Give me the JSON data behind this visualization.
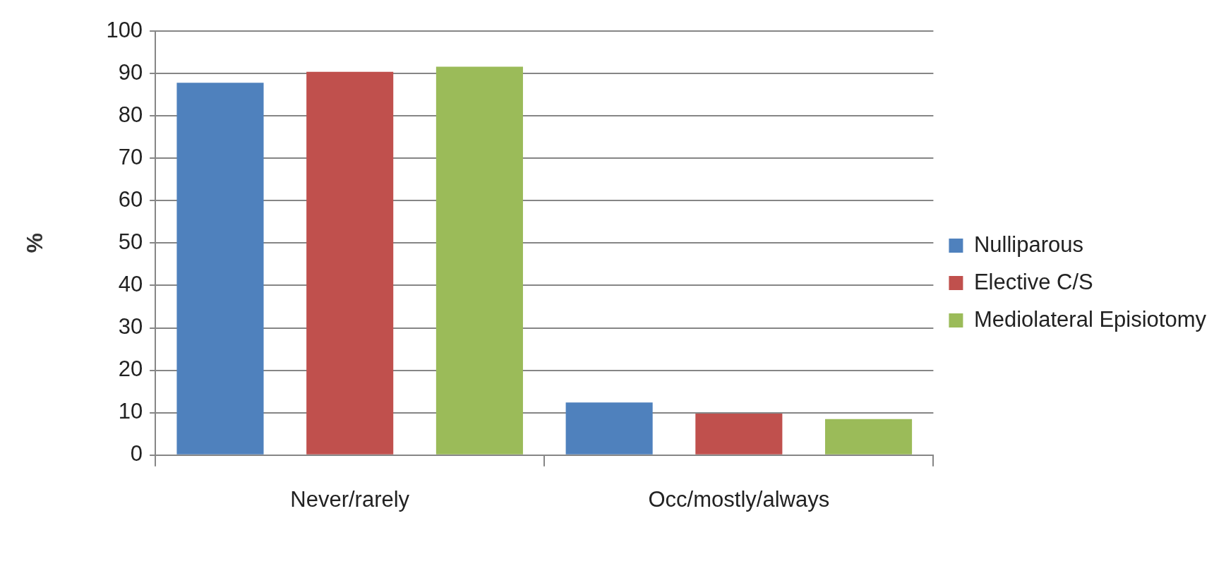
{
  "chart_data": {
    "type": "bar",
    "ylabel": "%",
    "categories": [
      "Never/rarely",
      "Occ/mostly/always"
    ],
    "series": [
      {
        "name": "Nulliparous",
        "color": "#4f81bd",
        "values": [
          87.8,
          12.4
        ]
      },
      {
        "name": "Elective C/S",
        "color": "#c0504d",
        "values": [
          90.4,
          9.8
        ]
      },
      {
        "name": "Mediolateral Episiotomy",
        "color": "#9bbb59",
        "values": [
          91.6,
          8.5
        ]
      }
    ],
    "ylim": [
      0,
      100
    ],
    "yticks": [
      0,
      10,
      20,
      30,
      40,
      50,
      60,
      70,
      80,
      90,
      100
    ],
    "grid": "y",
    "legend": "right"
  }
}
